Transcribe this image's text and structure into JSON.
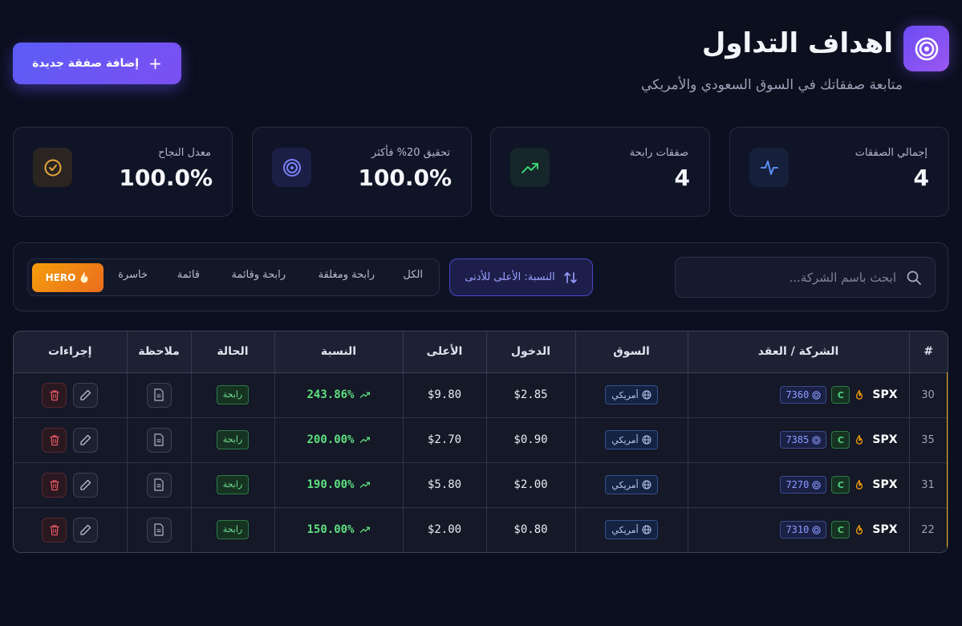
{
  "header": {
    "title": "اهداف التداول",
    "subtitle": "متابعة صفقاتك في السوق السعودي والأمريكي",
    "add_button_label": "إضافة صفقة جديدة",
    "logo_icon": "target-icon"
  },
  "stats": [
    {
      "label": "إجمالي الصفقات",
      "value": "4",
      "icon": "activity-icon",
      "color": "#4a7cf0"
    },
    {
      "label": "صفقات رابحة",
      "value": "4",
      "icon": "trending-up-icon",
      "color": "#34c36b"
    },
    {
      "label": "تحقيق 20% فأكثر",
      "value": "100.0%",
      "icon": "target-icon",
      "color": "#6b6ef5"
    },
    {
      "label": "معدل النجاح",
      "value": "100.0%",
      "icon": "check-circle-icon",
      "color": "#e8a53a"
    }
  ],
  "filters": {
    "search_placeholder": "ابحث باسم الشركة...",
    "sort_label": "النسبة: الأعلى للأدنى",
    "tabs": [
      "الكل",
      "رابحة ومغلقة",
      "رابحة وقائمة",
      "قائمة",
      "خاسرة"
    ],
    "hero_tab": "HERO"
  },
  "table": {
    "headers": [
      "#",
      "الشركة / العقد",
      "السوق",
      "الدخول",
      "الأعلى",
      "النسبة",
      "الحالة",
      "ملاحظة",
      "إجراءات"
    ],
    "rows": [
      {
        "id": "30",
        "ticker": "SPX",
        "type": "C",
        "strike": "7360",
        "market": "أمريكي",
        "entry": "$2.85",
        "high": "$9.80",
        "pct": "243.86%",
        "status": "رابحة"
      },
      {
        "id": "35",
        "ticker": "SPX",
        "type": "C",
        "strike": "7385",
        "market": "أمريكي",
        "entry": "$0.90",
        "high": "$2.70",
        "pct": "200.00%",
        "status": "رابحة"
      },
      {
        "id": "31",
        "ticker": "SPX",
        "type": "C",
        "strike": "7270",
        "market": "أمريكي",
        "entry": "$2.00",
        "high": "$5.80",
        "pct": "190.00%",
        "status": "رابحة"
      },
      {
        "id": "22",
        "ticker": "SPX",
        "type": "C",
        "strike": "7310",
        "market": "أمريكي",
        "entry": "$0.80",
        "high": "$2.00",
        "pct": "150.00%",
        "status": "رابحة"
      }
    ]
  }
}
